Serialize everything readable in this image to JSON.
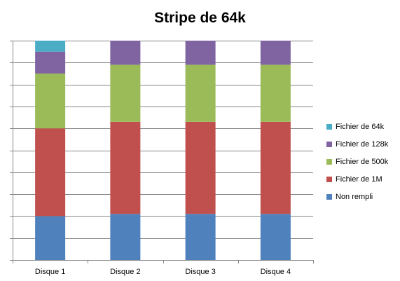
{
  "chart_data": {
    "type": "bar",
    "stacked": true,
    "percent_stacked": true,
    "title": "Stripe de 64k",
    "xlabel": "",
    "ylabel": "",
    "categories": [
      "Disque 1",
      "Disque 2",
      "Disque 3",
      "Disque 4"
    ],
    "series": [
      {
        "name": "Non rempli",
        "color": "#4F81BD",
        "values": [
          20,
          21,
          21,
          21
        ]
      },
      {
        "name": "Fichier de 1M",
        "color": "#C0504D",
        "values": [
          40,
          42,
          42,
          42
        ]
      },
      {
        "name": "Fichier de 500k",
        "color": "#9BBB59",
        "values": [
          25,
          26,
          26,
          26
        ]
      },
      {
        "name": "Fichier de 128k",
        "color": "#8064A2",
        "values": [
          10,
          11,
          11,
          11
        ]
      },
      {
        "name": "Fichier de 64k",
        "color": "#4BACC6",
        "values": [
          5,
          0,
          0,
          0
        ]
      }
    ],
    "ylim": [
      0,
      100
    ],
    "y_ticks": 10,
    "y_tick_labels_shown": false,
    "grid": true,
    "legend_position": "right"
  }
}
